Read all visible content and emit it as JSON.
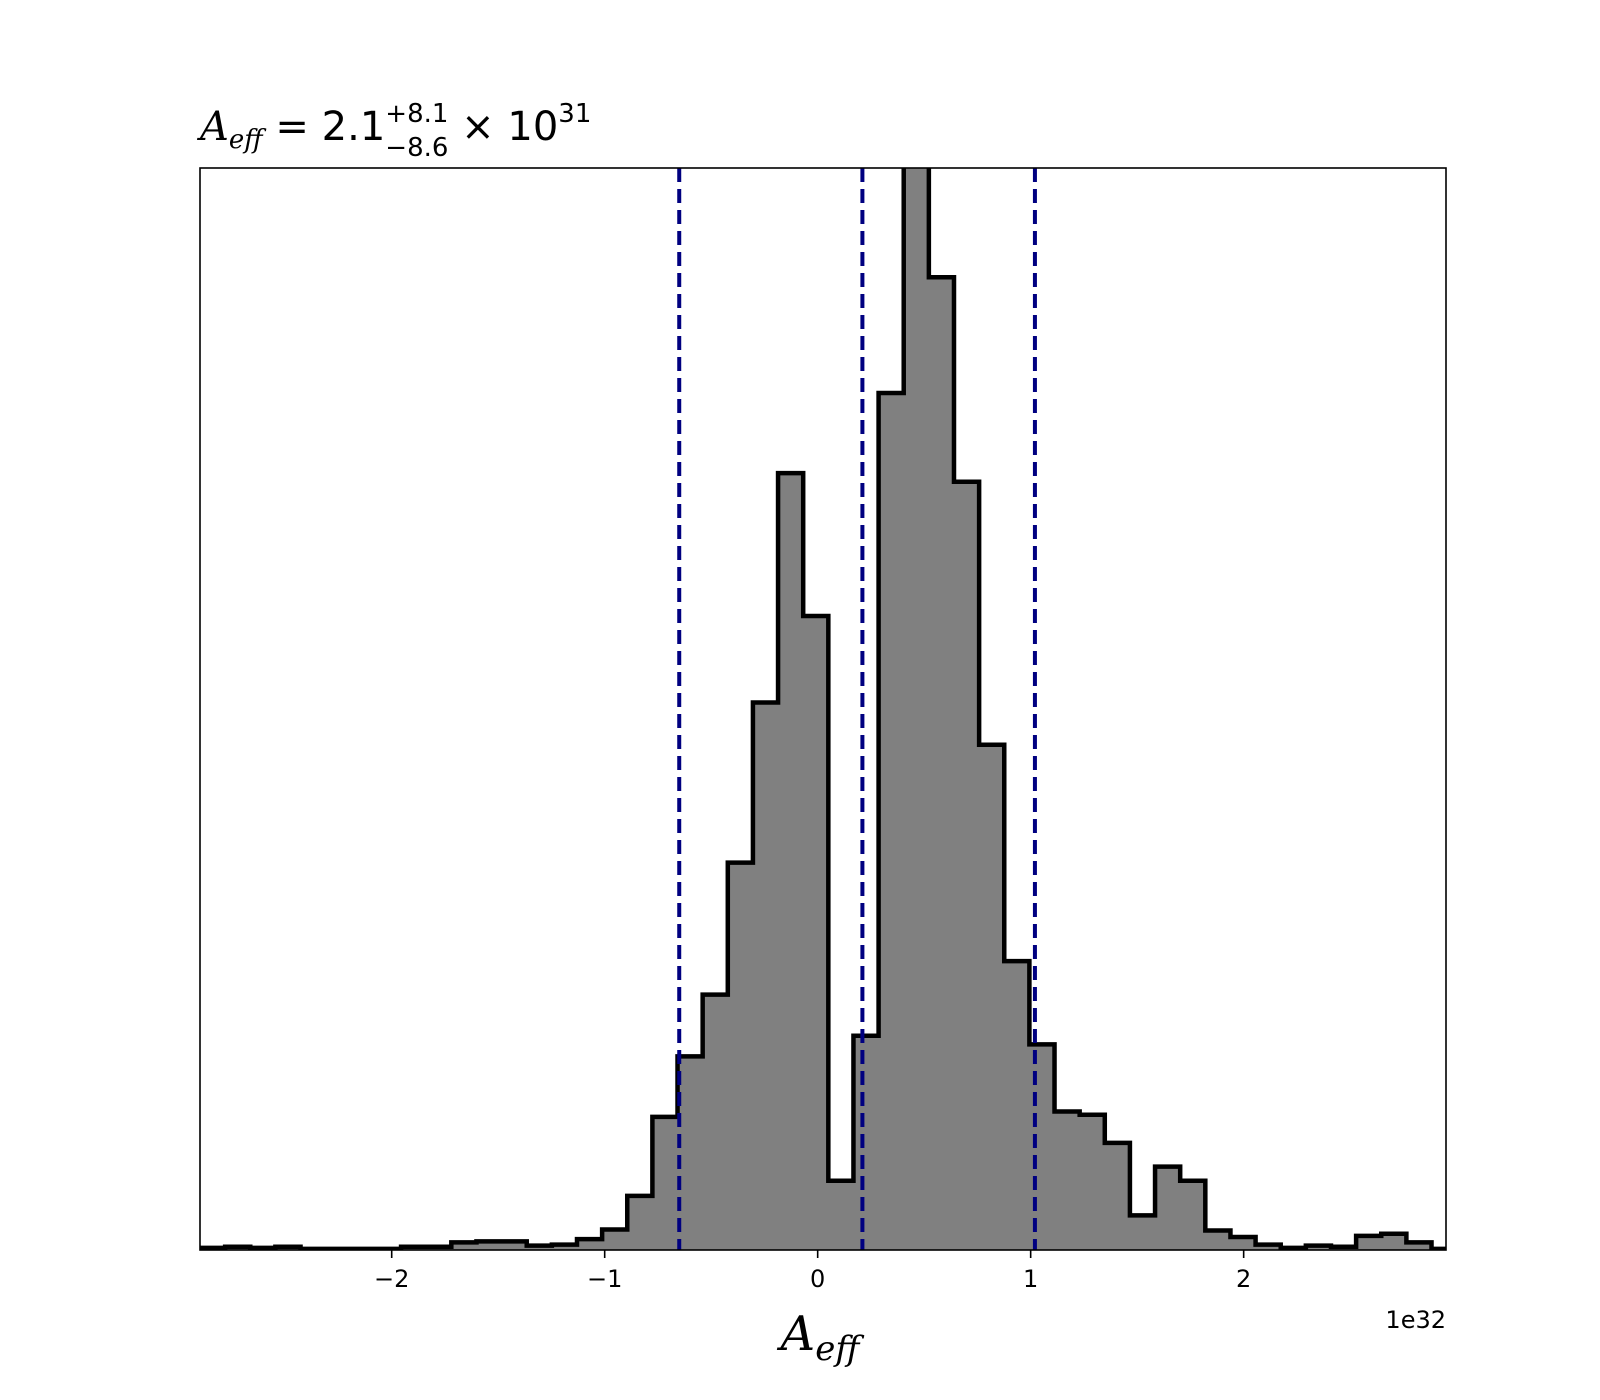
{
  "chart_data": {
    "type": "histogram",
    "title": {
      "symbol": "A",
      "symbol_sub": "eff",
      "equals": " = ",
      "value": "2.1",
      "upper": "+8.1",
      "lower": "−8.6",
      "times": " × ",
      "base": "10",
      "exponent": "31"
    },
    "xlabel": {
      "symbol": "A",
      "sub": "eff"
    },
    "x_offset_label": "1e32",
    "xlim": [
      -2.9,
      2.95
    ],
    "ylim": [
      0,
      1
    ],
    "x_ticks": [
      -2,
      -1,
      0,
      1,
      2
    ],
    "x_tick_labels": [
      "−2",
      "−1",
      "0",
      "1",
      "2"
    ],
    "y_ticks_shown": false,
    "bin_start": -2.9,
    "bin_width": 0.118,
    "counts": [
      0.002,
      0.003,
      0.002,
      0.003,
      0.001,
      0.001,
      0.001,
      0.001,
      0.003,
      0.003,
      0.007,
      0.008,
      0.008,
      0.004,
      0.005,
      0.01,
      0.019,
      0.05,
      0.123,
      0.179,
      0.236,
      0.358,
      0.506,
      0.718,
      0.586,
      0.064,
      0.198,
      0.792,
      1.02,
      0.899,
      0.71,
      0.467,
      0.267,
      0.19,
      0.128,
      0.125,
      0.099,
      0.032,
      0.077,
      0.064,
      0.018,
      0.012,
      0.005,
      0.002,
      0.004,
      0.003,
      0.013,
      0.015,
      0.007,
      0.001,
      0.001,
      0.002
    ],
    "fill_color": "#808080",
    "edge_color": "#000000",
    "vlines": [
      -0.65,
      0.21,
      1.02
    ],
    "vline_color": "#000080",
    "vline_style": "dashed",
    "grid": false
  }
}
